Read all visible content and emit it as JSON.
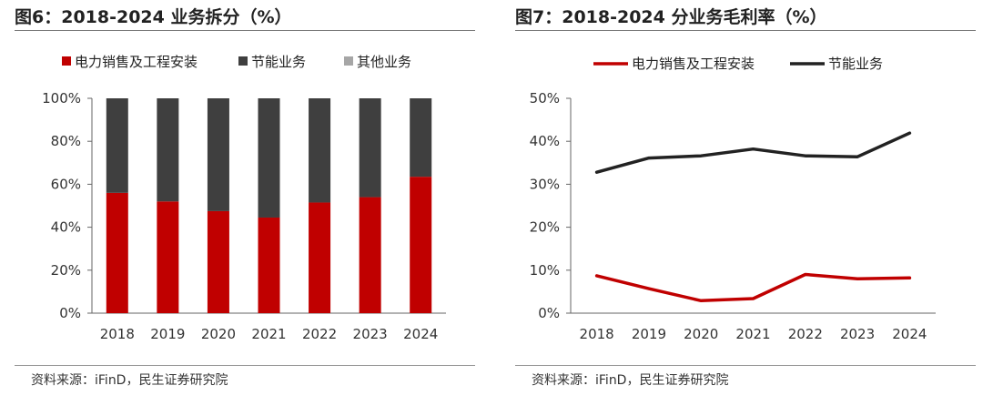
{
  "charts": [
    {
      "title": "图6：2018-2024 业务拆分（%）",
      "source": "资料来源：iFinD，民生证券研究院",
      "chart_data": {
        "type": "bar",
        "stacked": true,
        "categories": [
          "2018",
          "2019",
          "2020",
          "2021",
          "2022",
          "2023",
          "2024"
        ],
        "series": [
          {
            "name": "电力销售及工程安装",
            "color": "#c00000",
            "values": [
              56,
              52,
              47.5,
              44.5,
              51.5,
              54,
              63.5
            ]
          },
          {
            "name": "节能业务",
            "color": "#3f3f3f",
            "values": [
              44,
              48,
              52.5,
              55.5,
              48.5,
              46,
              36.5
            ]
          },
          {
            "name": "其他业务",
            "color": "#a6a6a6",
            "values": [
              0,
              0,
              0,
              0,
              0,
              0,
              0
            ]
          }
        ],
        "ylim": [
          0,
          100
        ],
        "yticks": [
          "0%",
          "20%",
          "40%",
          "60%",
          "80%",
          "100%"
        ],
        "legend": "top",
        "grid": false
      }
    },
    {
      "title": "图7：2018-2024 分业务毛利率（%）",
      "source": "资料来源：iFinD，民生证券研究院",
      "chart_data": {
        "type": "line",
        "categories": [
          "2018",
          "2019",
          "2020",
          "2021",
          "2022",
          "2023",
          "2024"
        ],
        "series": [
          {
            "name": "电力销售及工程安装",
            "color": "#c00000",
            "values": [
              8.7,
              5.7,
              2.9,
              3.4,
              9.0,
              8.0,
              8.2
            ]
          },
          {
            "name": "节能业务",
            "color": "#222222",
            "values": [
              32.8,
              36.1,
              36.6,
              38.2,
              36.6,
              36.4,
              41.9
            ]
          }
        ],
        "ylim": [
          0,
          50
        ],
        "yticks": [
          "0%",
          "10%",
          "20%",
          "30%",
          "40%",
          "50%"
        ],
        "legend": "top",
        "grid": false
      }
    }
  ]
}
